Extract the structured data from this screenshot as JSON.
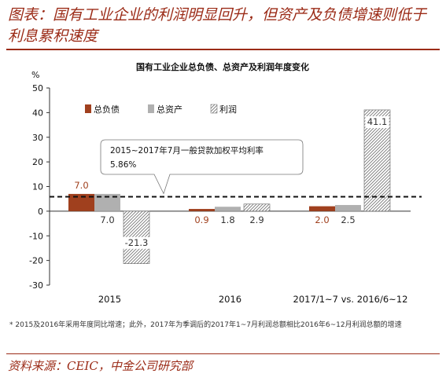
{
  "figure_title": "图表：国有工业企业的利润明显回升，但资产及负债增速则低于利息累积速度",
  "source": "资料来源：CEIC，中金公司研究部",
  "footnote": "* 2015及2016年采用年度同比增速；此外，2017年为季调后的2017年1~7月利润总额相比2016年6~12月利润总额的增速",
  "colors": {
    "accent": "#9b2b17",
    "liabilities": "#a0401e",
    "assets": "#b0b0b0",
    "profit_hatch": "#777777"
  },
  "chart_data": {
    "type": "bar",
    "title": "国有工业企业总负债、总资产及利润年度变化",
    "ylabel": "%",
    "ylim": [
      -30,
      50
    ],
    "yticks": [
      -30,
      -20,
      -10,
      0,
      10,
      20,
      30,
      40,
      50
    ],
    "categories": [
      "2015",
      "2016",
      "2017/1~7 vs. 2016/6~12"
    ],
    "series": [
      {
        "name": "总负债",
        "values": [
          7.0,
          0.9,
          2.0
        ]
      },
      {
        "name": "总资产",
        "values": [
          7.0,
          1.8,
          2.5
        ]
      },
      {
        "name": "利润",
        "values": [
          -21.3,
          2.9,
          41.1
        ]
      }
    ],
    "value_labels": [
      [
        "7.0",
        "0.9",
        "2.0"
      ],
      [
        "7.0",
        "1.8",
        "2.5"
      ],
      [
        "-21.3",
        "2.9",
        "41.1"
      ]
    ],
    "reference_line": {
      "value": 5.86
    },
    "annotation": {
      "line1": "2015~2017年7月一般贷款加权平均利率",
      "line2": "5.86%"
    },
    "legend_position": "top-left",
    "grid": false
  }
}
